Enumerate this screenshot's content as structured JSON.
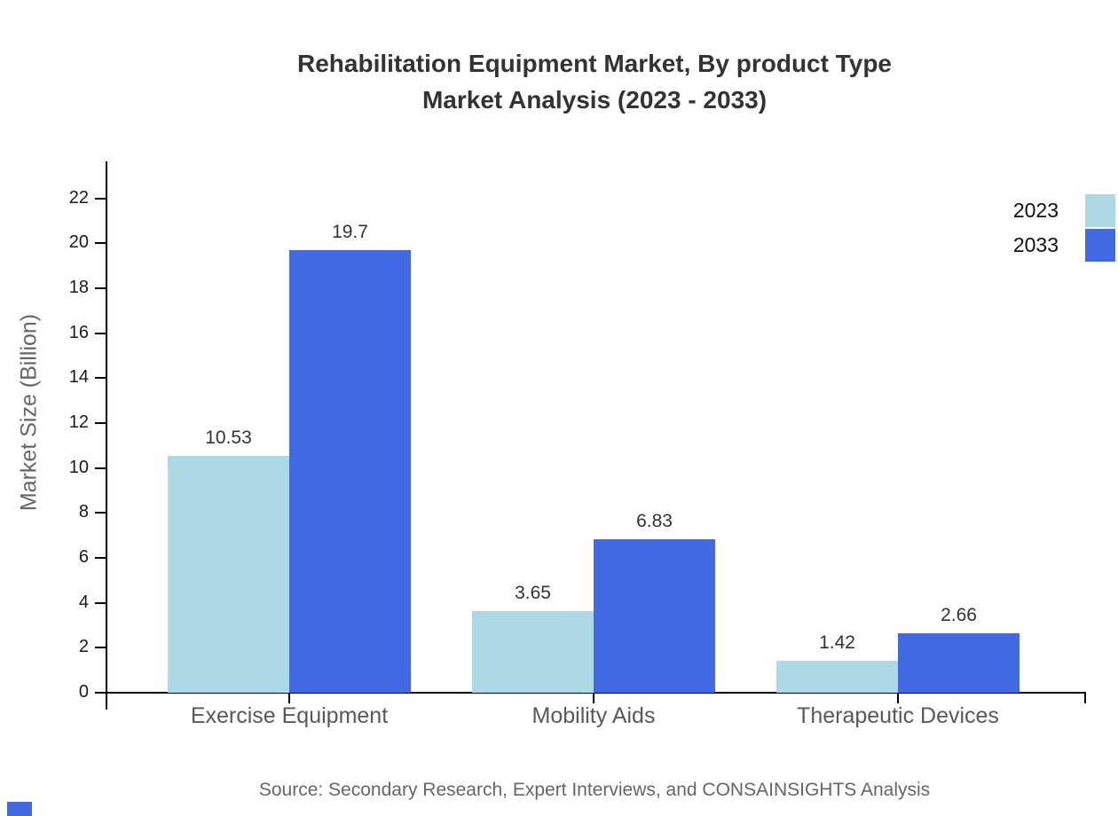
{
  "title": {
    "line1": "Rehabilitation Equipment Market, By product Type",
    "line2": "Market Analysis (2023 - 2033)"
  },
  "source": "Source: Secondary Research, Expert Interviews, and CONSAINSIGHTS Analysis",
  "colors": {
    "series_2023": "#ADD8E6",
    "series_2033": "#4169E1",
    "axis": "#000000",
    "title_text": "#333333",
    "category_text": "#595959",
    "muted_text": "#666666"
  },
  "chart_data": {
    "type": "bar",
    "title": "Rehabilitation Equipment Market, By product Type Market Analysis (2023 - 2033)",
    "categories": [
      "Exercise Equipment",
      "Mobility Aids",
      "Therapeutic Devices"
    ],
    "series": [
      {
        "name": "2023",
        "color": "#ADD8E6",
        "values": [
          10.53,
          3.65,
          1.42
        ]
      },
      {
        "name": "2033",
        "color": "#4169E1",
        "values": [
          19.7,
          6.83,
          2.66
        ]
      }
    ],
    "value_labels": [
      [
        "10.53",
        "3.65",
        "1.42"
      ],
      [
        "19.7",
        "6.83",
        "2.66"
      ]
    ],
    "xlabel": "",
    "ylabel": "Market Size (Billion)",
    "ylim": [
      0,
      23.7
    ],
    "yticks": [
      0,
      2,
      4,
      6,
      8,
      10,
      12,
      14,
      16,
      18,
      20,
      22
    ],
    "grid": false,
    "legend_position": "top-right"
  }
}
